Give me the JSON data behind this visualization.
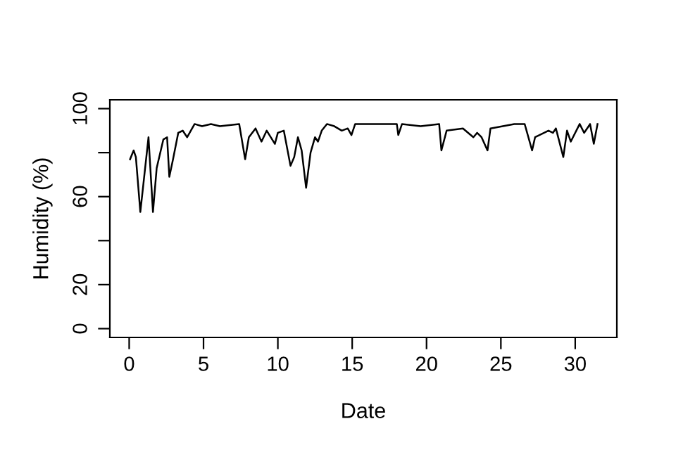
{
  "chart_data": {
    "type": "line",
    "xlabel": "Date",
    "ylabel": "Humidity (%)",
    "color": "#000000",
    "x": [
      0.06,
      0.3,
      0.45,
      0.75,
      1.3,
      1.6,
      1.85,
      2.3,
      2.55,
      2.7,
      2.95,
      3.3,
      3.6,
      3.9,
      4.4,
      4.9,
      5.5,
      6.1,
      7.4,
      7.8,
      8.05,
      8.5,
      8.9,
      9.25,
      9.8,
      10.0,
      10.4,
      10.85,
      11.1,
      11.35,
      11.6,
      11.9,
      12.2,
      12.5,
      12.7,
      12.95,
      13.3,
      13.8,
      14.3,
      14.7,
      14.95,
      15.2,
      15.5,
      16.8,
      18.0,
      18.1,
      18.35,
      19.6,
      20.85,
      21.0,
      21.35,
      22.45,
      23.15,
      23.4,
      23.7,
      24.1,
      24.3,
      25.9,
      26.6,
      27.1,
      27.3,
      28.2,
      28.5,
      28.7,
      29.2,
      29.45,
      29.7,
      30.3,
      30.6,
      31.0,
      31.25,
      31.5
    ],
    "values": [
      77,
      81,
      78,
      53,
      87,
      53,
      73,
      86,
      87,
      69,
      77,
      89,
      90,
      87,
      93,
      92,
      93,
      92,
      93,
      77,
      87,
      91,
      85,
      90,
      84,
      89,
      90,
      74,
      78,
      87,
      81,
      64,
      80,
      87,
      85,
      90,
      93,
      92,
      90,
      91,
      88,
      93,
      93,
      93,
      93,
      88,
      93,
      92,
      93,
      81,
      90,
      91,
      87,
      89,
      87,
      81,
      91,
      93,
      93,
      81,
      87,
      90,
      89,
      91,
      78,
      90,
      85,
      93,
      89,
      93,
      84,
      93
    ],
    "xlim": [
      -1.3,
      32.8
    ],
    "ylim": [
      -4,
      104
    ],
    "xticks": [
      0,
      5,
      10,
      15,
      20,
      25,
      30
    ],
    "yticks": [
      0,
      20,
      {
        "value": 40,
        "label": null
      },
      60,
      {
        "value": 80,
        "label": null
      },
      100
    ],
    "grid": false,
    "line_style": "solid",
    "marker": "none"
  }
}
